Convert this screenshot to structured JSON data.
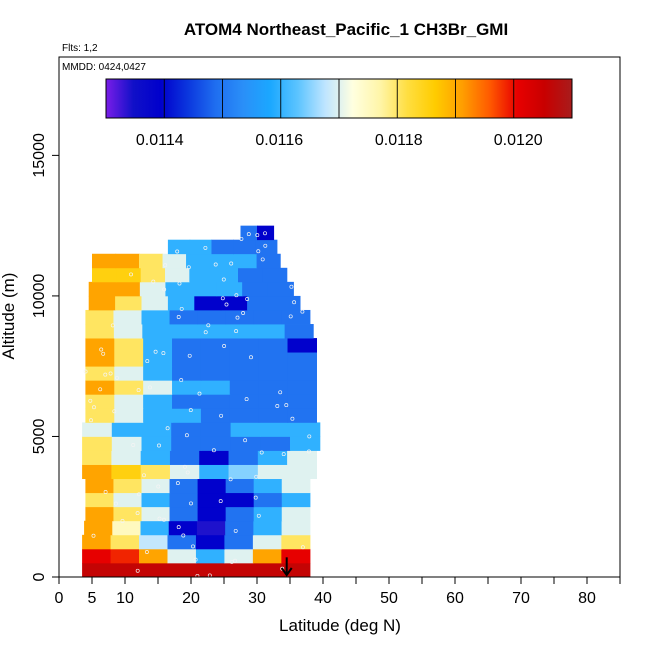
{
  "chart_data": {
    "type": "heatmap",
    "title": "ATOM4 Northeast_Pacific_1 CH3Br_GMI",
    "flights_note": "Flts: 1,2",
    "date_note": "MMDD: 0424,0427",
    "xlabel": "Latitude (deg N)",
    "ylabel": "Altitude (m)",
    "xlim": [
      0,
      85
    ],
    "ylim": [
      0,
      18500
    ],
    "x_ticks": [
      0,
      5,
      10,
      20,
      30,
      40,
      50,
      60,
      70,
      80
    ],
    "x_minor_ticks": [
      15,
      25,
      35,
      45,
      55,
      65,
      75,
      85
    ],
    "y_ticks": [
      0,
      5000,
      10000,
      15000
    ],
    "colorbar": {
      "min": 0.01131,
      "max": 0.01209,
      "ticks": [
        0.0114,
        0.0116,
        0.0118,
        0.012
      ],
      "tick_labels": [
        "0.0114",
        "0.0116",
        "0.0118",
        "0.0120"
      ],
      "colors": [
        "#7a1de8",
        "#1010c8",
        "#0000cc",
        "#0b37de",
        "#1f6ef0",
        "#2a8ff8",
        "#1ba8ff",
        "#5cc4ff",
        "#bfe5ff",
        "#ffffe0",
        "#fff5a8",
        "#ffde40",
        "#ffcc00",
        "#ff9e00",
        "#ff5a00",
        "#e80000",
        "#c80000",
        "#a81c1c"
      ]
    },
    "altitude_bands": [
      {
        "alt_bottom": 0,
        "alt_top": 500,
        "lat_min": 3.5,
        "lat_max": 38,
        "values": [
          0.01205,
          0.01205,
          0.01205,
          0.01205,
          0.01205,
          0.01205
        ]
      },
      {
        "alt_bottom": 500,
        "alt_top": 1000,
        "lat_min": 3.5,
        "lat_max": 38,
        "values": [
          0.012,
          0.01198,
          0.0119,
          0.0117,
          0.0116,
          0.0117,
          0.0119,
          0.012
        ]
      },
      {
        "alt_bottom": 1000,
        "alt_top": 1500,
        "lat_min": 3.5,
        "lat_max": 38,
        "values": [
          0.0119,
          0.0118,
          0.01168,
          0.0115,
          0.0114,
          0.0115,
          0.0117,
          0.0118
        ]
      },
      {
        "alt_bottom": 1500,
        "alt_top": 2000,
        "lat_min": 3.8,
        "lat_max": 38,
        "values": [
          0.0119,
          0.01175,
          0.0116,
          0.0114,
          0.01135,
          0.0115,
          0.0116,
          0.0117
        ]
      },
      {
        "alt_bottom": 2000,
        "alt_top": 2500,
        "lat_min": 4,
        "lat_max": 38,
        "values": [
          0.0119,
          0.0118,
          0.0117,
          0.0115,
          0.0114,
          0.0115,
          0.0116,
          0.0117
        ]
      },
      {
        "alt_bottom": 2500,
        "alt_top": 3000,
        "lat_min": 4,
        "lat_max": 38,
        "values": [
          0.0118,
          0.0117,
          0.0116,
          0.0115,
          0.0114,
          0.0114,
          0.0115,
          0.0116
        ]
      },
      {
        "alt_bottom": 3000,
        "alt_top": 3500,
        "lat_min": 4,
        "lat_max": 38,
        "values": [
          0.0119,
          0.0118,
          0.0117,
          0.0115,
          0.0114,
          0.0115,
          0.0116,
          0.0117
        ]
      },
      {
        "alt_bottom": 3500,
        "alt_top": 4000,
        "lat_min": 3.5,
        "lat_max": 39,
        "values": [
          0.0119,
          0.01185,
          0.0118,
          0.0117,
          0.0116,
          0.01165,
          0.0117,
          0.0117
        ]
      },
      {
        "alt_bottom": 4000,
        "alt_top": 4500,
        "lat_min": 3.5,
        "lat_max": 39,
        "values": [
          0.0118,
          0.0117,
          0.0116,
          0.0115,
          0.0114,
          0.0115,
          0.0116,
          0.0117
        ]
      },
      {
        "alt_bottom": 4500,
        "alt_top": 5000,
        "lat_min": 3.5,
        "lat_max": 39.5,
        "values": [
          0.0118,
          0.0117,
          0.0116,
          0.0115,
          0.0115,
          0.0115,
          0.0115,
          0.0116
        ]
      },
      {
        "alt_bottom": 5000,
        "alt_top": 5500,
        "lat_min": 3.5,
        "lat_max": 39.5,
        "values": [
          0.0117,
          0.0116,
          0.0116,
          0.0115,
          0.0115,
          0.0116,
          0.0116,
          0.0116
        ]
      },
      {
        "alt_bottom": 5500,
        "alt_top": 6000,
        "lat_min": 4,
        "lat_max": 39,
        "values": [
          0.0118,
          0.0117,
          0.0116,
          0.0116,
          0.0115,
          0.0115,
          0.0115,
          0.0115
        ]
      },
      {
        "alt_bottom": 6000,
        "alt_top": 6500,
        "lat_min": 4,
        "lat_max": 39,
        "values": [
          0.0118,
          0.0117,
          0.0116,
          0.0115,
          0.0115,
          0.0115,
          0.0115,
          0.0115
        ]
      },
      {
        "alt_bottom": 6500,
        "alt_top": 7000,
        "lat_min": 4,
        "lat_max": 39,
        "values": [
          0.0119,
          0.0118,
          0.0117,
          0.0116,
          0.0116,
          0.0115,
          0.0115,
          0.0115
        ]
      },
      {
        "alt_bottom": 7000,
        "alt_top": 7500,
        "lat_min": 4,
        "lat_max": 39,
        "values": [
          0.0118,
          0.0117,
          0.0116,
          0.0115,
          0.0115,
          0.0115,
          0.0115,
          0.0115
        ]
      },
      {
        "alt_bottom": 7500,
        "alt_top": 8000,
        "lat_min": 4,
        "lat_max": 39,
        "values": [
          0.0119,
          0.0118,
          0.0116,
          0.0115,
          0.0115,
          0.0115,
          0.0115,
          0.0115
        ]
      },
      {
        "alt_bottom": 8000,
        "alt_top": 8500,
        "lat_min": 4,
        "lat_max": 39,
        "values": [
          0.0119,
          0.0118,
          0.0116,
          0.0115,
          0.0115,
          0.0115,
          0.0115,
          0.0114
        ]
      },
      {
        "alt_bottom": 8500,
        "alt_top": 9000,
        "lat_min": 4,
        "lat_max": 38.5,
        "values": [
          0.0118,
          0.0117,
          0.0116,
          0.0116,
          0.0116,
          0.0116,
          0.0116,
          0.0115
        ]
      },
      {
        "alt_bottom": 9000,
        "alt_top": 9500,
        "lat_min": 4,
        "lat_max": 38,
        "values": [
          0.0118,
          0.0117,
          0.0116,
          0.0115,
          0.0115,
          0.0115,
          0.0115,
          0.0115
        ]
      },
      {
        "alt_bottom": 9500,
        "alt_top": 10000,
        "lat_min": 4.5,
        "lat_max": 36.5,
        "values": [
          0.0119,
          0.0118,
          0.0117,
          0.0116,
          0.0114,
          0.0114,
          0.0115,
          0.0115
        ]
      },
      {
        "alt_bottom": 10000,
        "alt_top": 10500,
        "lat_min": 4.5,
        "lat_max": 35.5,
        "values": [
          0.0119,
          0.0119,
          0.0117,
          0.0116,
          0.0116,
          0.0116,
          0.0115,
          0.0115
        ]
      },
      {
        "alt_bottom": 10500,
        "alt_top": 11000,
        "lat_min": 5,
        "lat_max": 34.5,
        "values": [
          0.01185,
          0.01185,
          0.0118,
          0.0117,
          0.0116,
          0.0116,
          0.0115,
          0.0115
        ]
      },
      {
        "alt_bottom": 11000,
        "alt_top": 11500,
        "lat_min": 5,
        "lat_max": 33.5,
        "values": [
          0.0119,
          0.0119,
          0.0118,
          0.0117,
          0.0116,
          0.0116,
          0.0116,
          0.0115
        ]
      },
      {
        "alt_bottom": 11500,
        "alt_top": 12000,
        "lat_min": 16.5,
        "lat_max": 33,
        "values": [
          0.0116,
          0.0116,
          0.0115,
          0.0115,
          0.0115
        ]
      },
      {
        "alt_bottom": 12000,
        "alt_top": 12500,
        "lat_min": 27.5,
        "lat_max": 32.5,
        "values": [
          0.0115,
          0.0114
        ]
      }
    ],
    "annotation_arrow": {
      "latitude": 34.5,
      "altitude_from": 700,
      "altitude_to": 0
    }
  }
}
